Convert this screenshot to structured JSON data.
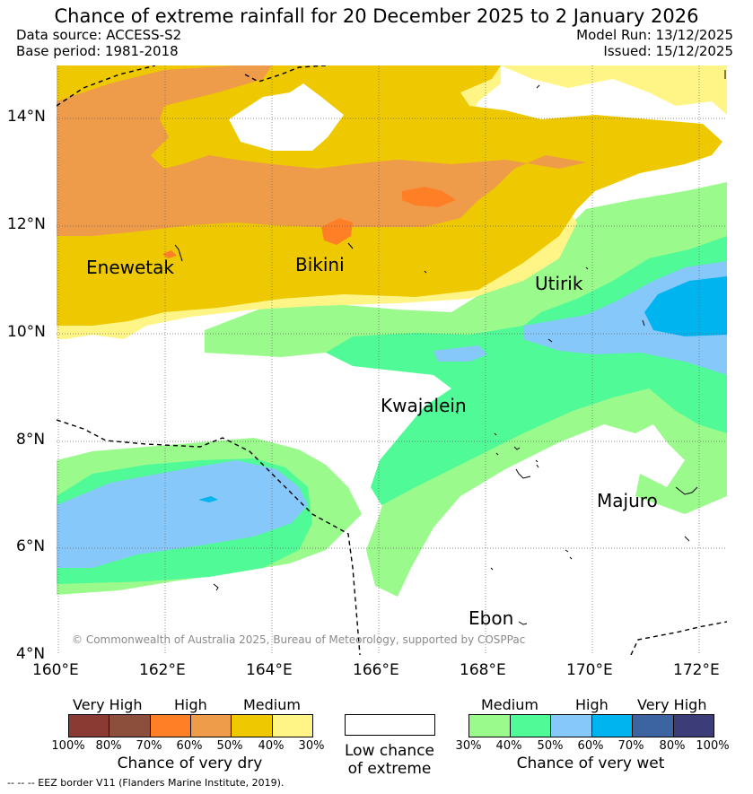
{
  "title": "Chance of extreme rainfall for 20 December 2025 to 2 January 2026",
  "meta": {
    "data_source": "Data source: ACCESS-S2",
    "base_period": "Base period: 1981-2018",
    "model_run": "Model Run: 13/12/2025",
    "issued": "Issued: 15/12/2025"
  },
  "axes": {
    "lat_labels": [
      "14°N",
      "12°N",
      "10°N",
      "8°N",
      "6°N",
      "4°N"
    ],
    "lon_labels": [
      "160°E",
      "162°E",
      "164°E",
      "166°E",
      "168°E",
      "170°E",
      "172°E"
    ]
  },
  "places": [
    "Enewetak",
    "Bikini",
    "Utirik",
    "Kwajalein",
    "Majuro",
    "Ebon"
  ],
  "copyright": "© Commonwealth of Australia 2025, Bureau of Meteorology, supported by COSPPac",
  "legend": {
    "dry": {
      "groups": [
        "Very High",
        "High",
        "Medium"
      ],
      "ticks": [
        "100%",
        "80%",
        "70%",
        "60%",
        "50%",
        "40%",
        "30%"
      ],
      "colors": [
        "#8b3a33",
        "#8b4f3c",
        "#ff7f27",
        "#ee9b4a",
        "#eec800",
        "#fff587"
      ],
      "title": "Chance of very dry"
    },
    "low": {
      "line1": "Low chance",
      "line2": "of extreme"
    },
    "wet": {
      "groups": [
        "Medium",
        "High",
        "Very High"
      ],
      "ticks": [
        "30%",
        "40%",
        "50%",
        "60%",
        "70%",
        "80%",
        "100%"
      ],
      "colors": [
        "#9afa8c",
        "#50fa96",
        "#87c8fa",
        "#00b4f0",
        "#3c64a0",
        "#3c3c78"
      ],
      "title": "Chance of very wet"
    }
  },
  "footer": "-- -- -- EEZ border V11 (Flanders Marine Institute, 2019)."
}
